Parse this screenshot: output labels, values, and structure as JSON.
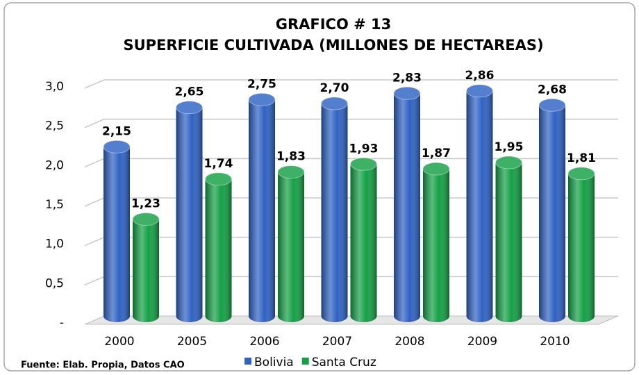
{
  "chart_data": {
    "type": "bar3d",
    "title": "GRAFICO # 13",
    "subtitle": "SUPERFICIE CULTIVADA (MILLONES DE HECTAREAS)",
    "source": "Fuente: Elab. Propia, Datos CAO",
    "categories": [
      "2000",
      "2005",
      "2006",
      "2007",
      "2008",
      "2009",
      "2010"
    ],
    "series": [
      {
        "name": "Bolivia",
        "color": "#2f62c4",
        "values": [
          2.15,
          2.65,
          2.75,
          2.7,
          2.83,
          2.86,
          2.68
        ],
        "value_labels": [
          "2,15",
          "2,65",
          "2,75",
          "2,70",
          "2,83",
          "2,86",
          "2,68"
        ]
      },
      {
        "name": "Santa Cruz",
        "color": "#14a046",
        "values": [
          1.23,
          1.74,
          1.83,
          1.93,
          1.87,
          1.95,
          1.81
        ],
        "value_labels": [
          "1,23",
          "1,74",
          "1,83",
          "1,93",
          "1,87",
          "1,95",
          "1,81"
        ]
      }
    ],
    "ylim": [
      0,
      3
    ],
    "yticks": [
      {
        "value": 0,
        "label": "-"
      },
      {
        "value": 0.5,
        "label": "0,5"
      },
      {
        "value": 1,
        "label": "1,0"
      },
      {
        "value": 1.5,
        "label": "1,5"
      },
      {
        "value": 2,
        "label": "2,0"
      },
      {
        "value": 2.5,
        "label": "2,5"
      },
      {
        "value": 3,
        "label": "3,0"
      }
    ],
    "grid": true,
    "legend": "bottom"
  }
}
